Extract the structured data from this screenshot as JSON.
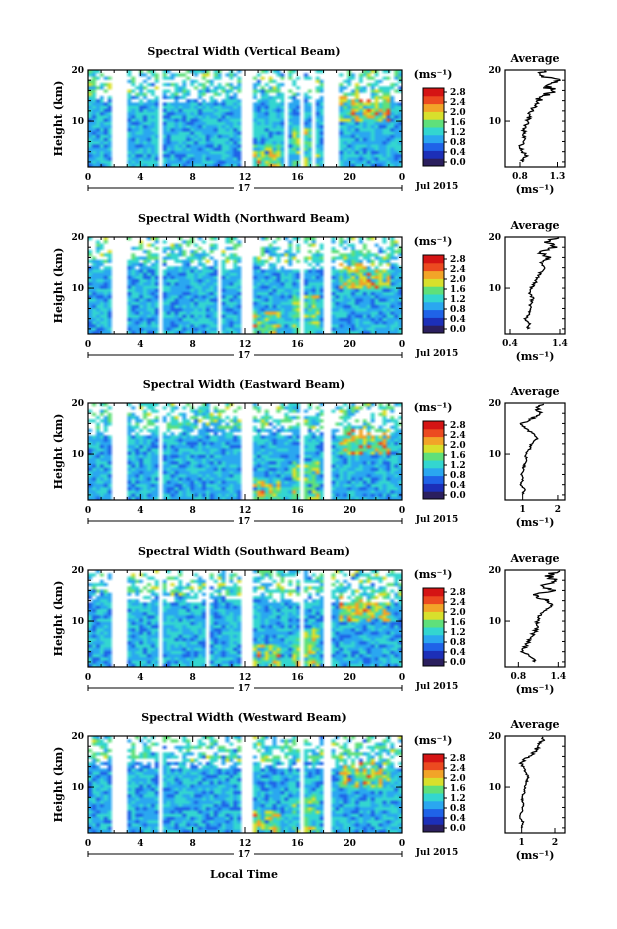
{
  "figure": {
    "x_label": "Local Time",
    "date_label": "Jul 2015",
    "day_label": "17",
    "x_ticks": [
      "0",
      "4",
      "8",
      "12",
      "16",
      "20",
      "0"
    ],
    "y_label": "Height (km)",
    "y_ticks": [
      "20",
      "10"
    ],
    "unit_label": "(ms⁻¹)",
    "avg_title": "Average",
    "avg_xlabel": "(ms⁻¹)",
    "colorbar_ticks": [
      "2.8",
      "2.4",
      "2.0",
      "1.6",
      "1.2",
      "0.8",
      "0.4",
      "0.0"
    ]
  },
  "colors": {
    "colormap": [
      "#2b1f5e",
      "#1c2fb8",
      "#1f63e8",
      "#2aa7f0",
      "#33d6d0",
      "#5fe07a",
      "#d8e02c",
      "#f2a428",
      "#ec4a20",
      "#d51414"
    ],
    "accent_warm": "#e03020"
  },
  "chart_data": [
    {
      "type": "heatmap",
      "title": "Spectral Width (Vertical Beam)",
      "xlabel": "Local Time",
      "ylabel": "Height (km)",
      "xlim": [
        0,
        24
      ],
      "ylim": [
        1,
        20
      ],
      "colorbar": {
        "label": "(ms⁻¹)",
        "range": [
          0.0,
          2.8
        ]
      },
      "data_gaps_hours": [
        [
          1.7,
          2.2
        ],
        [
          2.4,
          2.7
        ],
        [
          5.3,
          5.6
        ],
        [
          11.6,
          12.3
        ],
        [
          15.0,
          15.2
        ],
        [
          15.9,
          16.3
        ],
        [
          16.8,
          17.2
        ],
        [
          17.8,
          18.3
        ],
        [
          18.6,
          19.0
        ]
      ],
      "average_profile": {
        "title": "Average",
        "xlabel": "(ms⁻¹)",
        "xticks": [
          "0.8",
          "1.3"
        ],
        "xlim": [
          0.6,
          1.4
        ],
        "yticks": [
          "20",
          "10"
        ],
        "ylim": [
          1,
          20
        ],
        "height_km": [
          2,
          3,
          4,
          5,
          6,
          7,
          8,
          9,
          10,
          11,
          12,
          13,
          14,
          15,
          16,
          17,
          18,
          19,
          20
        ],
        "values": [
          0.82,
          0.88,
          0.84,
          0.8,
          0.84,
          0.86,
          0.85,
          0.87,
          0.9,
          0.92,
          0.95,
          1.0,
          1.05,
          1.15,
          1.25,
          1.1,
          1.3,
          1.05,
          1.2
        ]
      }
    },
    {
      "type": "heatmap",
      "title": "Spectral Width (Northward Beam)",
      "xlabel": "Local Time",
      "ylabel": "Height (km)",
      "xlim": [
        0,
        24
      ],
      "ylim": [
        1,
        20
      ],
      "colorbar": {
        "label": "(ms⁻¹)",
        "range": [
          0.0,
          2.8
        ]
      },
      "data_gaps_hours": [
        [
          1.7,
          2.2
        ],
        [
          2.4,
          2.7
        ],
        [
          5.3,
          5.6
        ],
        [
          9.7,
          9.9
        ],
        [
          11.6,
          12.3
        ],
        [
          15.9,
          16.3
        ],
        [
          17.8,
          18.3
        ]
      ],
      "average_profile": {
        "title": "Average",
        "xlabel": "(ms⁻¹)",
        "xticks": [
          "0.4",
          "1.4"
        ],
        "xlim": [
          0.3,
          1.5
        ],
        "yticks": [
          "20",
          "10"
        ],
        "ylim": [
          1,
          20
        ],
        "height_km": [
          2,
          3,
          4,
          5,
          6,
          7,
          8,
          9,
          10,
          11,
          12,
          13,
          14,
          15,
          16,
          17,
          18,
          19,
          20
        ],
        "values": [
          0.75,
          0.8,
          0.7,
          0.78,
          0.8,
          0.82,
          0.85,
          0.8,
          0.82,
          0.9,
          0.95,
          1.0,
          1.1,
          1.05,
          1.2,
          1.0,
          1.3,
          1.15,
          1.35
        ]
      }
    },
    {
      "type": "heatmap",
      "title": "Spectral Width (Eastward Beam)",
      "xlabel": "Local Time",
      "ylabel": "Height (km)",
      "xlim": [
        0,
        24
      ],
      "ylim": [
        1,
        20
      ],
      "colorbar": {
        "label": "(ms⁻¹)",
        "range": [
          0.0,
          2.8
        ]
      },
      "data_gaps_hours": [
        [
          1.7,
          2.2
        ],
        [
          2.4,
          2.7
        ],
        [
          5.3,
          5.6
        ],
        [
          11.6,
          12.3
        ],
        [
          15.9,
          16.3
        ],
        [
          17.8,
          18.3
        ]
      ],
      "average_profile": {
        "title": "Average",
        "xlabel": "(ms⁻¹)",
        "xticks": [
          "1",
          "2"
        ],
        "xlim": [
          0.5,
          2.2
        ],
        "yticks": [
          "20",
          "10"
        ],
        "ylim": [
          1,
          20
        ],
        "height_km": [
          2,
          3,
          4,
          5,
          6,
          7,
          8,
          9,
          10,
          11,
          12,
          13,
          14,
          15,
          16,
          17,
          18,
          19,
          20
        ],
        "values": [
          1.0,
          1.05,
          0.95,
          1.0,
          0.98,
          1.02,
          1.05,
          1.1,
          1.08,
          1.2,
          1.25,
          1.4,
          1.3,
          1.1,
          1.0,
          1.3,
          1.5,
          1.4,
          1.6
        ]
      }
    },
    {
      "type": "heatmap",
      "title": "Spectral Width (Southward Beam)",
      "xlabel": "Local Time",
      "ylabel": "Height (km)",
      "xlim": [
        0,
        24
      ],
      "ylim": [
        1,
        20
      ],
      "colorbar": {
        "label": "(ms⁻¹)",
        "range": [
          0.0,
          2.8
        ]
      },
      "data_gaps_hours": [
        [
          1.7,
          2.2
        ],
        [
          2.4,
          2.7
        ],
        [
          5.3,
          5.6
        ],
        [
          8.9,
          9.2
        ],
        [
          11.6,
          12.3
        ],
        [
          15.9,
          16.3
        ],
        [
          17.8,
          18.3
        ]
      ],
      "average_profile": {
        "title": "Average",
        "xlabel": "(ms⁻¹)",
        "xticks": [
          "0.8",
          "1.4"
        ],
        "xlim": [
          0.6,
          1.5
        ],
        "yticks": [
          "20",
          "10"
        ],
        "ylim": [
          1,
          20
        ],
        "height_km": [
          2,
          3,
          4,
          5,
          6,
          7,
          8,
          9,
          10,
          11,
          12,
          13,
          14,
          15,
          16,
          17,
          18,
          19,
          20
        ],
        "values": [
          1.05,
          1.0,
          0.85,
          0.9,
          0.95,
          1.0,
          1.05,
          1.1,
          1.08,
          1.12,
          1.2,
          1.3,
          1.25,
          1.05,
          1.3,
          1.2,
          1.35,
          1.25,
          1.4
        ]
      }
    },
    {
      "type": "heatmap",
      "title": "Spectral Width (Westward Beam)",
      "xlabel": "Local Time",
      "ylabel": "Height (km)",
      "xlim": [
        0,
        24
      ],
      "ylim": [
        1,
        20
      ],
      "colorbar": {
        "label": "(ms⁻¹)",
        "range": [
          0.0,
          2.8
        ]
      },
      "data_gaps_hours": [
        [
          1.7,
          2.2
        ],
        [
          2.4,
          2.7
        ],
        [
          5.3,
          5.6
        ],
        [
          11.6,
          12.3
        ],
        [
          15.9,
          16.3
        ],
        [
          17.8,
          18.3
        ]
      ],
      "average_profile": {
        "title": "Average",
        "xlabel": "(ms⁻¹)",
        "xticks": [
          "1",
          "2"
        ],
        "xlim": [
          0.5,
          2.3
        ],
        "yticks": [
          "20",
          "10"
        ],
        "ylim": [
          1,
          20
        ],
        "height_km": [
          2,
          3,
          4,
          5,
          6,
          7,
          8,
          9,
          10,
          11,
          12,
          13,
          14,
          15,
          16,
          17,
          18,
          19,
          20
        ],
        "values": [
          1.0,
          1.05,
          0.95,
          1.0,
          1.02,
          1.05,
          1.0,
          1.08,
          1.1,
          1.15,
          1.2,
          1.1,
          1.05,
          1.0,
          1.2,
          1.4,
          1.5,
          1.6,
          1.7
        ]
      }
    }
  ]
}
